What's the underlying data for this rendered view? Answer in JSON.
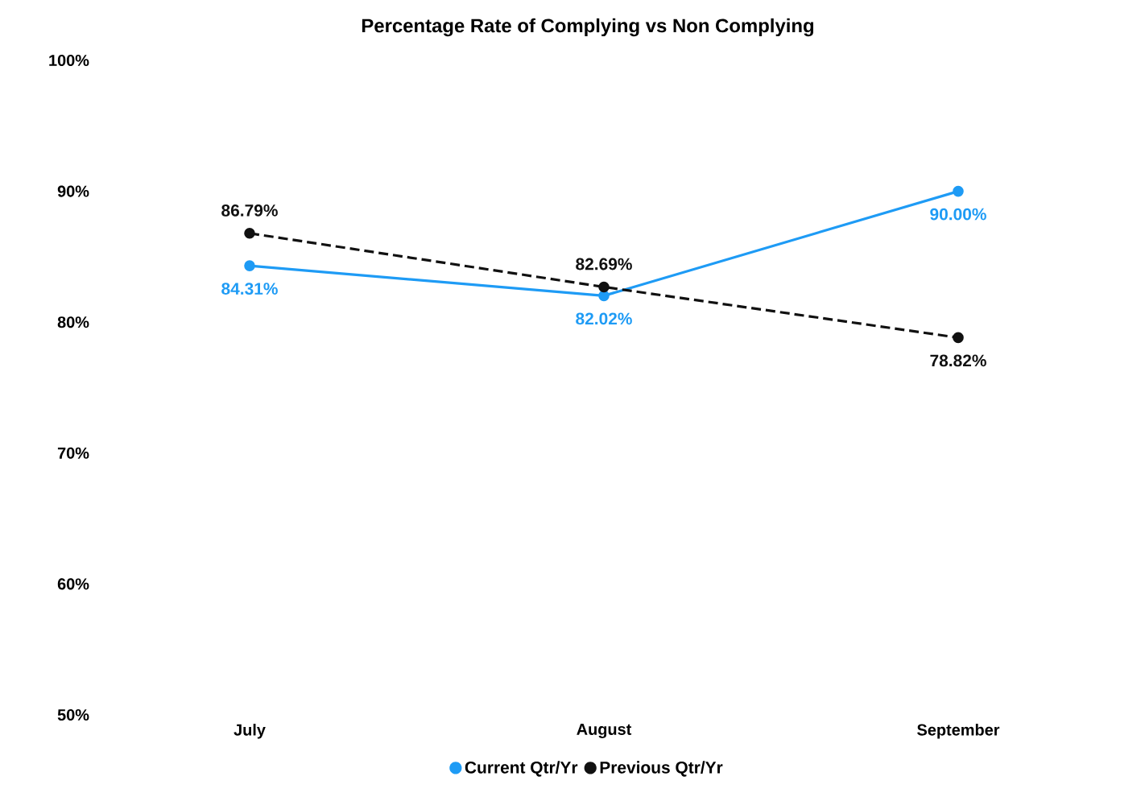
{
  "chart_data": {
    "type": "line",
    "title": "Percentage Rate of Complying vs Non Complying",
    "categories": [
      "July",
      "August",
      "September"
    ],
    "series": [
      {
        "name": "Current Qtr/Yr",
        "color": "#1e9bf5",
        "values": [
          84.31,
          82.02,
          90.0
        ],
        "value_labels": [
          "84.31%",
          "82.02%",
          "90.00%"
        ],
        "line_style": "solid"
      },
      {
        "name": "Previous Qtr/Yr",
        "color": "#111111",
        "values": [
          86.79,
          82.69,
          78.82
        ],
        "value_labels": [
          "86.79%",
          "82.69%",
          "78.82%"
        ],
        "line_style": "dashed"
      }
    ],
    "ylim": [
      50,
      100
    ],
    "yticks": [
      {
        "value": 50,
        "label": "50%"
      },
      {
        "value": 60,
        "label": "60%"
      },
      {
        "value": 70,
        "label": "70%"
      },
      {
        "value": 80,
        "label": "80%"
      },
      {
        "value": 90,
        "label": "90%"
      },
      {
        "value": 100,
        "label": "100%"
      }
    ],
    "grid": false,
    "legend": "bottom",
    "marker": "circle"
  }
}
